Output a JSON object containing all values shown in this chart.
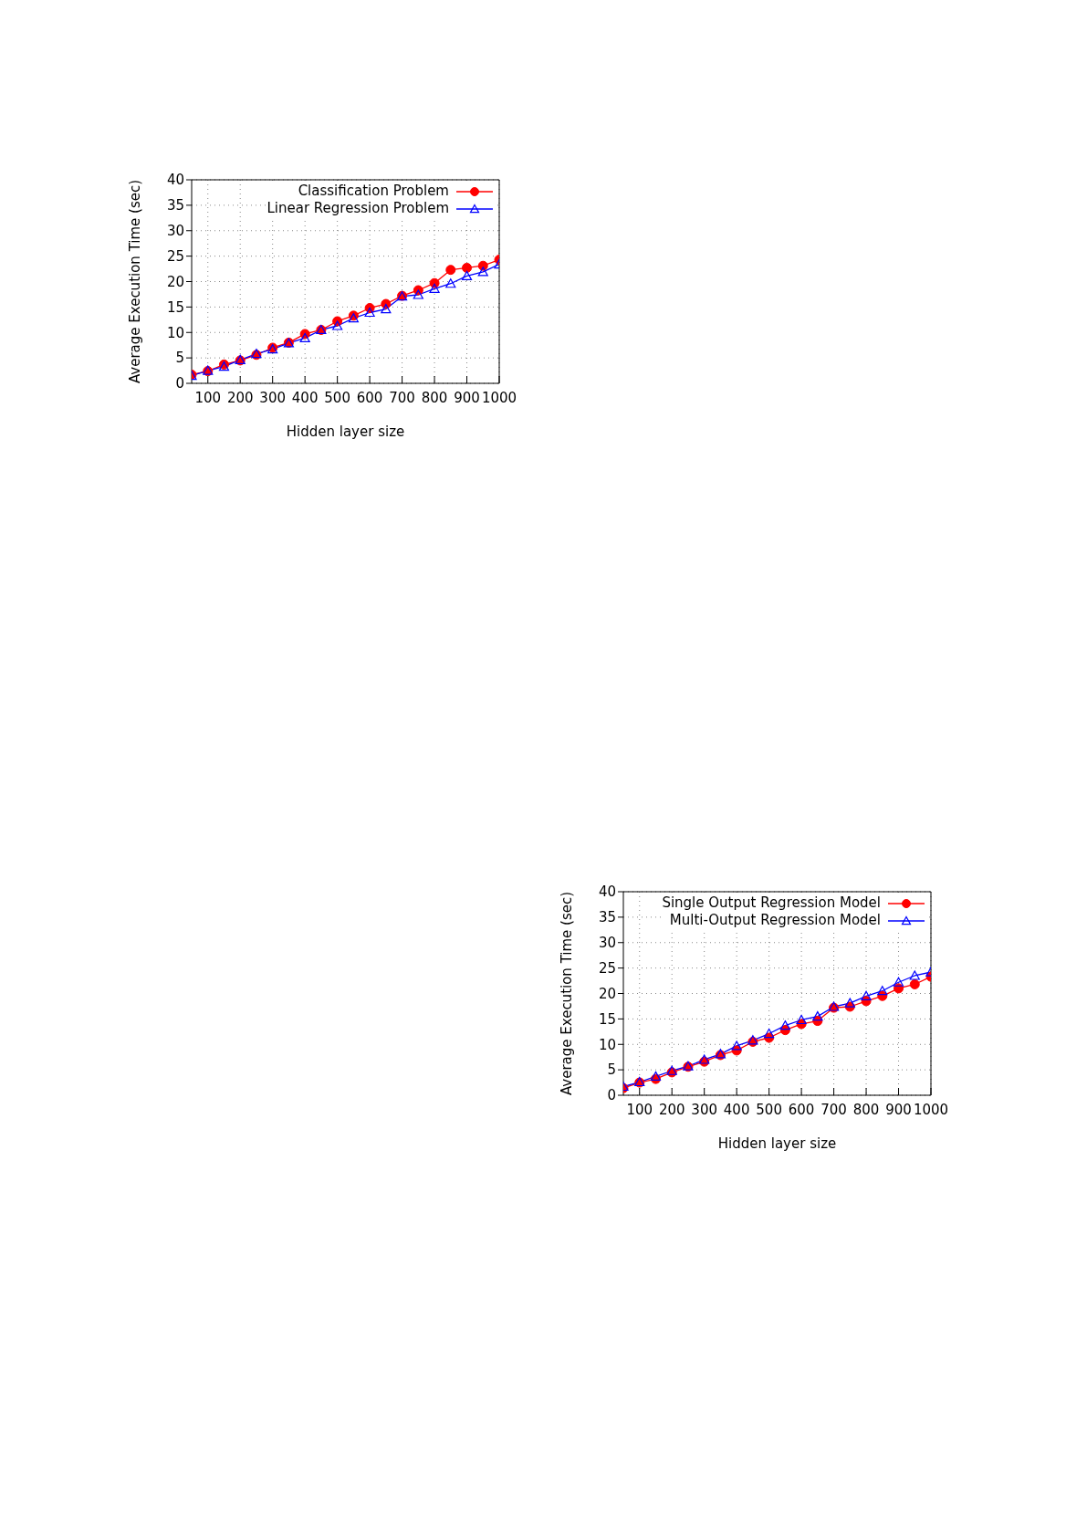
{
  "chart_data": [
    {
      "type": "line",
      "xlabel": "Hidden layer size",
      "ylabel": "Average Execution Time (sec)",
      "x": [
        50,
        100,
        150,
        200,
        250,
        300,
        350,
        400,
        450,
        500,
        550,
        600,
        650,
        700,
        750,
        800,
        850,
        900,
        950,
        1000
      ],
      "xlim": [
        50,
        1000
      ],
      "xticks": [
        100,
        200,
        300,
        400,
        500,
        600,
        700,
        800,
        900,
        1000
      ],
      "ylim": [
        0,
        40
      ],
      "yticks": [
        0,
        5,
        10,
        15,
        20,
        25,
        30,
        35,
        40
      ],
      "grid": true,
      "legend": "top right",
      "line_style": "solid",
      "series": [
        {
          "name": "Classification Problem",
          "color": "#ff0000",
          "marker": "circle",
          "values": [
            1.7,
            2.4,
            3.7,
            4.5,
            5.6,
            7.0,
            8.0,
            9.7,
            10.5,
            12.2,
            13.3,
            14.8,
            15.6,
            17.2,
            18.3,
            19.7,
            22.3,
            22.7,
            23.1,
            24.3
          ]
        },
        {
          "name": "Linear Regression Problem",
          "color": "#0000ff",
          "marker": "triangle",
          "values": [
            1.5,
            2.5,
            3.3,
            4.6,
            5.8,
            6.7,
            7.9,
            8.9,
            10.5,
            11.3,
            12.8,
            13.9,
            14.6,
            17.1,
            17.4,
            18.6,
            19.6,
            21.1,
            21.9,
            23.4
          ]
        }
      ]
    },
    {
      "type": "line",
      "xlabel": "Hidden layer size",
      "ylabel": "Average Execution Time (sec)",
      "x": [
        50,
        100,
        150,
        200,
        250,
        300,
        350,
        400,
        450,
        500,
        550,
        600,
        650,
        700,
        750,
        800,
        850,
        900,
        950,
        1000
      ],
      "xlim": [
        50,
        1000
      ],
      "xticks": [
        100,
        200,
        300,
        400,
        500,
        600,
        700,
        800,
        900,
        1000
      ],
      "ylim": [
        0,
        40
      ],
      "yticks": [
        0,
        5,
        10,
        15,
        20,
        25,
        30,
        35,
        40
      ],
      "grid": true,
      "legend": "top right",
      "line_style": "solid",
      "series": [
        {
          "name": "Single Output Regression Model",
          "color": "#ff0000",
          "marker": "circle",
          "values": [
            1.4,
            2.5,
            3.2,
            4.5,
            5.6,
            6.6,
            7.9,
            8.8,
            10.5,
            11.3,
            12.8,
            14.0,
            14.6,
            17.2,
            17.4,
            18.5,
            19.5,
            21.0,
            21.8,
            23.3
          ]
        },
        {
          "name": "Multi-Output Regression Model",
          "color": "#0000ff",
          "marker": "triangle",
          "values": [
            1.7,
            2.6,
            3.7,
            4.8,
            5.7,
            7.0,
            8.1,
            9.7,
            10.8,
            12.1,
            13.7,
            14.8,
            15.5,
            17.4,
            18.1,
            19.5,
            20.5,
            22.2,
            23.5,
            24.2
          ]
        }
      ]
    }
  ]
}
